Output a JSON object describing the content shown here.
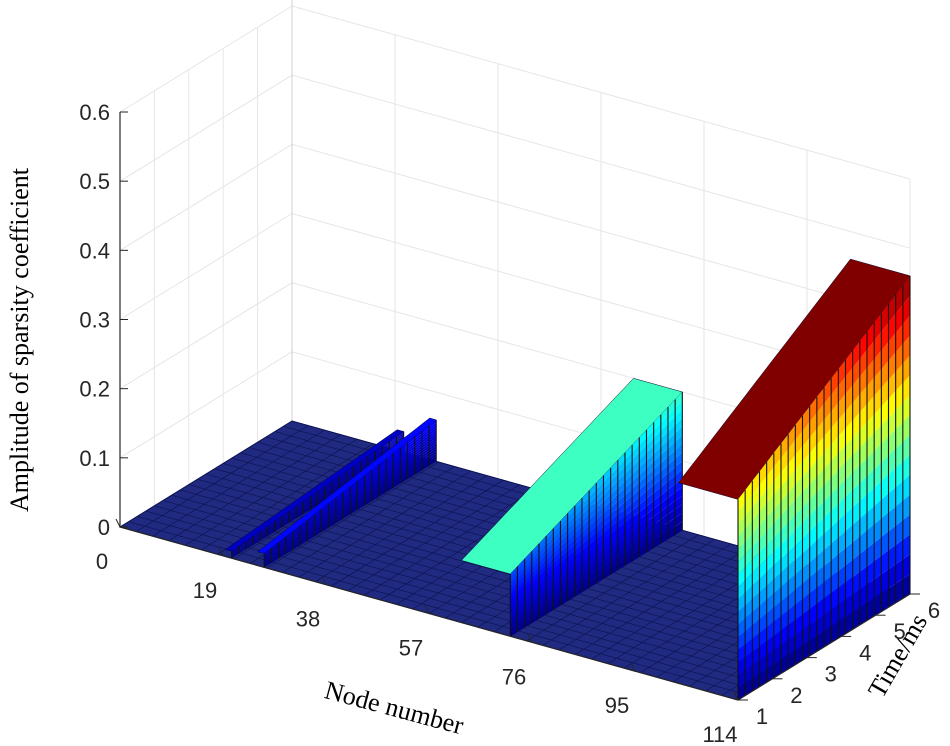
{
  "chart_data": {
    "type": "surface3d",
    "title": "",
    "xlabel": "Node number",
    "ylabel": "Time/ms",
    "zlabel": "Amplitude of sparsity coefficient",
    "x_ticks": [
      "0",
      "19",
      "38",
      "57",
      "76",
      "95",
      "114"
    ],
    "y_ticks": [
      "1",
      "2",
      "3",
      "4",
      "5",
      "6"
    ],
    "z_ticks": [
      "0",
      "0.1",
      "0.2",
      "0.3",
      "0.4",
      "0.5",
      "0.6"
    ],
    "xlim": [
      0,
      114
    ],
    "ylim": [
      1,
      6
    ],
    "zlim": [
      0,
      0.6
    ],
    "grid": true,
    "colormap": "jet",
    "features": [
      {
        "name": "ridge-a",
        "x": 20,
        "z_at_t1": 0.01,
        "z_at_t6": 0.03
      },
      {
        "name": "ridge-b",
        "x": 26,
        "z_at_t1": 0.02,
        "z_at_t6": 0.06
      },
      {
        "name": "block-cyan",
        "x_range": [
          63,
          72
        ],
        "z_at_t1": 0.09,
        "z_at_t6": 0.2
      },
      {
        "name": "block-main",
        "x_range": [
          103,
          114
        ],
        "z_at_t1": 0.29,
        "z_at_t6": 0.46
      }
    ]
  }
}
